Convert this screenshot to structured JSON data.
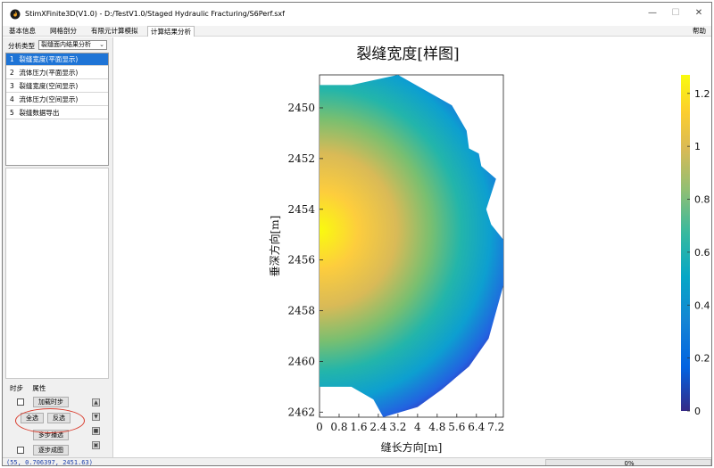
{
  "window": {
    "title": "StimXFinite3D(V1.0) - D:/TestV1.0/Staged Hydraulic Fracturing/S6Perf.sxf",
    "minimize": "—",
    "maximize": "☐",
    "close": "✕"
  },
  "menu": {
    "tabs": [
      "基本信息",
      "网格剖分",
      "有限元计算模拟",
      "计算结果分析"
    ],
    "active_index": 3,
    "help": "帮助"
  },
  "left_panel": {
    "type_label": "分析类型",
    "type_select": "裂缝面内结果分析",
    "list": [
      {
        "num": "1",
        "label": "裂缝宽度(平面显示)",
        "selected": true
      },
      {
        "num": "2",
        "label": "流体压力(平面显示)",
        "selected": false
      },
      {
        "num": "3",
        "label": "裂缝宽度(空间显示)",
        "selected": false
      },
      {
        "num": "4",
        "label": "流体压力(空间显示)",
        "selected": false
      },
      {
        "num": "5",
        "label": "裂缝数据导出",
        "selected": false
      }
    ],
    "subtabs": [
      "时步",
      "属性"
    ],
    "buttons": {
      "load_timestep": "加载时步",
      "select_all": "全选",
      "invert": "反选",
      "multistep": "多步播选",
      "stepwise": "逐步成图"
    }
  },
  "chart_data": {
    "type": "heatmap",
    "title": "裂缝宽度[样图]",
    "xlabel": "缝长方向[m]",
    "ylabel": "垂深方向[m]",
    "x_ticks": [
      "0",
      "0.8",
      "1.6",
      "2.4",
      "3.2",
      "4",
      "4.8",
      "5.6",
      "6.4",
      "7.2"
    ],
    "y_ticks": [
      "2450",
      "2452",
      "2454",
      "2456",
      "2458",
      "2460",
      "2462"
    ],
    "xlim": [
      0,
      7.5
    ],
    "ylim": [
      2462.2,
      2448.7
    ],
    "y_inverted": true,
    "colorbar": {
      "ticks": [
        "0",
        "0.2",
        "0.4",
        "0.6",
        "0.8",
        "1",
        "1.2"
      ],
      "range": [
        0,
        1.27
      ],
      "colormap": "parula"
    },
    "max_value_at": {
      "x": 0,
      "y": 2455.2
    },
    "boundary": [
      [
        0,
        2449.1
      ],
      [
        1.3,
        2449.1
      ],
      [
        3.2,
        2448.7
      ],
      [
        5.4,
        2449.9
      ],
      [
        6.0,
        2450.9
      ],
      [
        6.1,
        2451.6
      ],
      [
        6.5,
        2451.8
      ],
      [
        6.6,
        2452.3
      ],
      [
        7.2,
        2452.8
      ],
      [
        6.8,
        2454.0
      ],
      [
        7.0,
        2454.6
      ],
      [
        7.5,
        2455.2
      ],
      [
        7.5,
        2457.0
      ],
      [
        6.9,
        2459.1
      ],
      [
        6.1,
        2460.2
      ],
      [
        5.0,
        2461.1
      ],
      [
        4.0,
        2461.8
      ],
      [
        2.6,
        2462.2
      ],
      [
        2.2,
        2461.5
      ],
      [
        1.3,
        2461.0
      ],
      [
        0,
        2461.0
      ]
    ]
  },
  "status": {
    "coordinate": "(55, 0.706397, 2451.63)",
    "progress": "0%"
  },
  "colors": {
    "selection": "#1e74d6",
    "annotation": "#d93a2b",
    "status_text": "#1a3da8"
  }
}
